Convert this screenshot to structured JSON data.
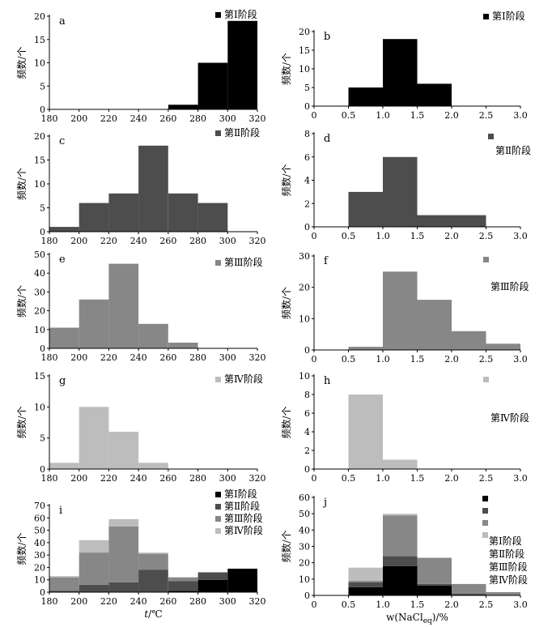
{
  "colors": {
    "stage1": "#000000",
    "stage2": "#4d4d4d",
    "stage3": "#878787",
    "stage4": "#bdbdbd"
  },
  "chart_data": [
    {
      "id": "a",
      "type": "bar",
      "panel_label": "a",
      "kind": "temp",
      "legend": [
        {
          "label": "第Ⅰ阶段",
          "stage": "stage1"
        }
      ],
      "ylabel": "频数/个",
      "xlabel": "",
      "xlim": [
        180,
        320
      ],
      "xticks": [
        "180",
        "200",
        "220",
        "240",
        "260",
        "280",
        "300",
        "320"
      ],
      "ylim": [
        0,
        20
      ],
      "yticks": [
        "0",
        "5",
        "10",
        "15",
        "20"
      ],
      "bins": [
        [
          180,
          200
        ],
        [
          200,
          220
        ],
        [
          220,
          240
        ],
        [
          240,
          260
        ],
        [
          260,
          280
        ],
        [
          280,
          300
        ],
        [
          300,
          320
        ]
      ],
      "series": [
        {
          "stage": "stage1",
          "values": [
            0,
            0,
            0,
            0,
            1,
            10,
            19
          ]
        }
      ]
    },
    {
      "id": "b",
      "type": "bar",
      "panel_label": "b",
      "kind": "salinity",
      "legend": [
        {
          "label": "第Ⅰ阶段",
          "stage": "stage1"
        }
      ],
      "ylabel": "频数/个",
      "xlabel": "",
      "xlim": [
        0,
        3
      ],
      "xticks": [
        "0",
        "0.5",
        "1.0",
        "1.5",
        "2.0",
        "2.5",
        "3.0"
      ],
      "ylim": [
        0,
        20
      ],
      "yticks": [
        "0",
        "5",
        "10",
        "15",
        "20"
      ],
      "bins": [
        [
          0,
          0.5
        ],
        [
          0.5,
          1.0
        ],
        [
          1.0,
          1.5
        ],
        [
          1.5,
          2.0
        ],
        [
          2.0,
          2.5
        ],
        [
          2.5,
          3.0
        ]
      ],
      "series": [
        {
          "stage": "stage1",
          "values": [
            0,
            5,
            18,
            6,
            0,
            0
          ]
        }
      ]
    },
    {
      "id": "c",
      "type": "bar",
      "panel_label": "c",
      "kind": "temp",
      "legend": [
        {
          "label": "第Ⅱ阶段",
          "stage": "stage2"
        }
      ],
      "ylabel": "频数/个",
      "xlabel": "",
      "xlim": [
        180,
        320
      ],
      "xticks": [
        "180",
        "200",
        "220",
        "240",
        "260",
        "280",
        "300",
        "320"
      ],
      "ylim": [
        0,
        20
      ],
      "yticks": [
        "0",
        "5",
        "10",
        "15",
        "20"
      ],
      "bins": [
        [
          180,
          200
        ],
        [
          200,
          220
        ],
        [
          220,
          240
        ],
        [
          240,
          260
        ],
        [
          260,
          280
        ],
        [
          280,
          300
        ],
        [
          300,
          320
        ]
      ],
      "series": [
        {
          "stage": "stage2",
          "values": [
            1,
            6,
            8,
            18,
            8,
            6,
            0
          ]
        }
      ]
    },
    {
      "id": "d",
      "type": "bar",
      "panel_label": "d",
      "kind": "salinity",
      "legend": [
        {
          "label": "第Ⅱ阶段",
          "stage": "stage2"
        }
      ],
      "ylabel": "频数/个",
      "xlabel": "",
      "xlim": [
        0,
        3
      ],
      "xticks": [
        "0",
        "0.5",
        "1.0",
        "1.5",
        "2.0",
        "2.5",
        "3.0"
      ],
      "ylim": [
        0,
        8
      ],
      "yticks": [
        "0",
        "2",
        "4",
        "6",
        "8"
      ],
      "bins": [
        [
          0,
          0.5
        ],
        [
          0.5,
          1.0
        ],
        [
          1.0,
          1.5
        ],
        [
          1.5,
          2.0
        ],
        [
          2.0,
          2.5
        ],
        [
          2.5,
          3.0
        ]
      ],
      "series": [
        {
          "stage": "stage2",
          "values": [
            0,
            3,
            6,
            1,
            1,
            0
          ]
        }
      ]
    },
    {
      "id": "e",
      "type": "bar",
      "panel_label": "e",
      "kind": "temp",
      "legend": [
        {
          "label": "第Ⅲ阶段",
          "stage": "stage3"
        }
      ],
      "ylabel": "频数/个",
      "xlabel": "",
      "xlim": [
        180,
        320
      ],
      "xticks": [
        "180",
        "200",
        "220",
        "240",
        "260",
        "280",
        "300",
        "320"
      ],
      "ylim": [
        0,
        50
      ],
      "yticks": [
        "0",
        "10",
        "20",
        "30",
        "40",
        "50"
      ],
      "bins": [
        [
          180,
          200
        ],
        [
          200,
          220
        ],
        [
          220,
          240
        ],
        [
          240,
          260
        ],
        [
          260,
          280
        ],
        [
          280,
          300
        ],
        [
          300,
          320
        ]
      ],
      "series": [
        {
          "stage": "stage3",
          "values": [
            11,
            26,
            45,
            13,
            3,
            0,
            0
          ]
        }
      ]
    },
    {
      "id": "f",
      "type": "bar",
      "panel_label": "f",
      "kind": "salinity",
      "legend": [
        {
          "label": "第Ⅲ阶段",
          "stage": "stage3"
        }
      ],
      "ylabel": "频数/个",
      "xlabel": "",
      "xlim": [
        0,
        3
      ],
      "xticks": [
        "0",
        "0.5",
        "1.0",
        "1.5",
        "2.0",
        "2.5",
        "3.0"
      ],
      "ylim": [
        0,
        30
      ],
      "yticks": [
        "0",
        "10",
        "20",
        "30"
      ],
      "bins": [
        [
          0,
          0.5
        ],
        [
          0.5,
          1.0
        ],
        [
          1.0,
          1.5
        ],
        [
          1.5,
          2.0
        ],
        [
          2.0,
          2.5
        ],
        [
          2.5,
          3.0
        ]
      ],
      "series": [
        {
          "stage": "stage3",
          "values": [
            0,
            1,
            25,
            16,
            6,
            2
          ]
        }
      ]
    },
    {
      "id": "g",
      "type": "bar",
      "panel_label": "g",
      "kind": "temp",
      "legend": [
        {
          "label": "第Ⅳ阶段",
          "stage": "stage4"
        }
      ],
      "ylabel": "频数/个",
      "xlabel": "",
      "xlim": [
        180,
        320
      ],
      "xticks": [
        "180",
        "200",
        "220",
        "240",
        "260",
        "280",
        "300",
        "320"
      ],
      "ylim": [
        0,
        15
      ],
      "yticks": [
        "0",
        "5",
        "10",
        "15"
      ],
      "bins": [
        [
          180,
          200
        ],
        [
          200,
          220
        ],
        [
          220,
          240
        ],
        [
          240,
          260
        ],
        [
          260,
          280
        ],
        [
          280,
          300
        ],
        [
          300,
          320
        ]
      ],
      "series": [
        {
          "stage": "stage4",
          "values": [
            1,
            10,
            6,
            1,
            0,
            0,
            0
          ]
        }
      ]
    },
    {
      "id": "h",
      "type": "bar",
      "panel_label": "h",
      "kind": "salinity",
      "legend": [
        {
          "label": "第Ⅳ阶段",
          "stage": "stage4"
        }
      ],
      "ylabel": "频数/个",
      "xlabel": "",
      "xlim": [
        0,
        3
      ],
      "xticks": [
        "0",
        "0.5",
        "1.0",
        "1.5",
        "2.0",
        "2.5",
        "3.0"
      ],
      "ylim": [
        0,
        10
      ],
      "yticks": [
        "0",
        "2",
        "4",
        "6",
        "8",
        "10"
      ],
      "bins": [
        [
          0,
          0.5
        ],
        [
          0.5,
          1.0
        ],
        [
          1.0,
          1.5
        ],
        [
          1.5,
          2.0
        ],
        [
          2.0,
          2.5
        ],
        [
          2.5,
          3.0
        ]
      ],
      "series": [
        {
          "stage": "stage4",
          "values": [
            0,
            8,
            1,
            0,
            0,
            0
          ]
        }
      ]
    },
    {
      "id": "i",
      "type": "bar",
      "stacked": true,
      "panel_label": "i",
      "kind": "temp",
      "legend": [
        {
          "label": "第Ⅰ阶段",
          "stage": "stage1"
        },
        {
          "label": "第Ⅱ阶段",
          "stage": "stage2"
        },
        {
          "label": "第Ⅲ阶段",
          "stage": "stage3"
        },
        {
          "label": "第Ⅳ阶段",
          "stage": "stage4"
        }
      ],
      "ylabel": "频数/个",
      "xlabel": "t/℃",
      "xlim": [
        180,
        320
      ],
      "xticks": [
        "180",
        "200",
        "220",
        "240",
        "260",
        "280",
        "300",
        "320"
      ],
      "ylim": [
        0,
        70
      ],
      "yticks": [
        "0",
        "10",
        "20",
        "30",
        "40",
        "50",
        "60",
        "70"
      ],
      "bins": [
        [
          180,
          200
        ],
        [
          200,
          220
        ],
        [
          220,
          240
        ],
        [
          240,
          260
        ],
        [
          260,
          280
        ],
        [
          280,
          300
        ],
        [
          300,
          320
        ]
      ],
      "series": [
        {
          "stage": "stage1",
          "values": [
            0,
            0,
            0,
            0,
            1,
            10,
            19
          ]
        },
        {
          "stage": "stage2",
          "values": [
            1,
            6,
            8,
            18,
            8,
            6,
            0
          ]
        },
        {
          "stage": "stage3",
          "values": [
            11,
            26,
            45,
            13,
            3,
            0,
            0
          ]
        },
        {
          "stage": "stage4",
          "values": [
            1,
            10,
            6,
            1,
            0,
            0,
            0
          ]
        }
      ]
    },
    {
      "id": "j",
      "type": "bar",
      "stacked": true,
      "panel_label": "j",
      "kind": "salinity",
      "legend": [
        {
          "label": "第Ⅰ阶段",
          "stage": "stage1"
        },
        {
          "label": "第Ⅱ阶段",
          "stage": "stage2"
        },
        {
          "label": "第Ⅲ阶段",
          "stage": "stage3"
        },
        {
          "label": "第Ⅳ阶段",
          "stage": "stage4"
        }
      ],
      "ylabel": "频数/个",
      "xlabel": "w(NaCl",
      "xlabel_sub": "eq",
      "xlabel_tail": ")/%",
      "xlim": [
        0,
        3
      ],
      "xticks": [
        "0",
        "0.5",
        "1.0",
        "1.5",
        "2.0",
        "2.5",
        "3.0"
      ],
      "ylim": [
        0,
        60
      ],
      "yticks": [
        "0",
        "10",
        "20",
        "30",
        "40",
        "50",
        "60"
      ],
      "bins": [
        [
          0,
          0.5
        ],
        [
          0.5,
          1.0
        ],
        [
          1.0,
          1.5
        ],
        [
          1.5,
          2.0
        ],
        [
          2.0,
          2.5
        ],
        [
          2.5,
          3.0
        ]
      ],
      "series": [
        {
          "stage": "stage1",
          "values": [
            0,
            5,
            18,
            6,
            0,
            0
          ]
        },
        {
          "stage": "stage2",
          "values": [
            0,
            3,
            6,
            1,
            1,
            0
          ]
        },
        {
          "stage": "stage3",
          "values": [
            0,
            1,
            25,
            16,
            6,
            2
          ]
        },
        {
          "stage": "stage4",
          "values": [
            0,
            8,
            1,
            0,
            0,
            0
          ]
        }
      ]
    }
  ]
}
